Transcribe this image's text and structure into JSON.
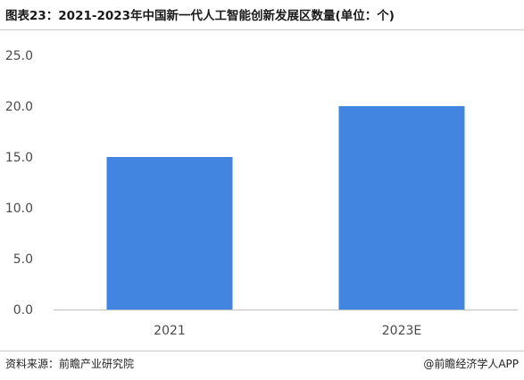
{
  "chart_data": {
    "type": "bar",
    "title": "图表23：2021-2023年中国新一代人工智能创新发展区数量(单位：个)",
    "categories": [
      "2021",
      "2023E"
    ],
    "values": [
      15,
      20
    ],
    "xlabel": "",
    "ylabel": "",
    "ylim": [
      0,
      25
    ],
    "yticks": [
      "0.0",
      "5.0",
      "10.0",
      "15.0",
      "20.0",
      "25.0"
    ],
    "grid": false,
    "legend": "none",
    "bar_color": "#4285E0"
  },
  "footer": {
    "source": "资料来源：前瞻产业研究院",
    "credit": "@前瞻经济学人APP"
  }
}
